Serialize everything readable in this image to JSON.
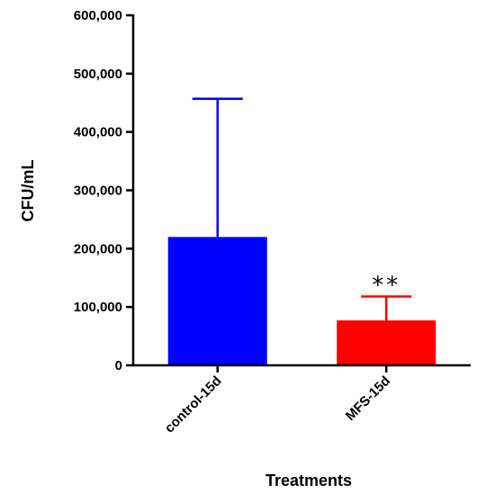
{
  "chart_data": {
    "type": "bar",
    "xlabel": "Treatments",
    "ylabel": "CFU/mL",
    "ylim": [
      0,
      600000
    ],
    "yticks": [
      0,
      100000,
      200000,
      300000,
      400000,
      500000,
      600000
    ],
    "ytick_labels": [
      "0",
      "100,000",
      "200,000",
      "300,000",
      "400,000",
      "500,000",
      "600,000"
    ],
    "categories": [
      "control-15d",
      "MFS-15d"
    ],
    "values": [
      220000,
      77000
    ],
    "error_upper": [
      457000,
      118000
    ],
    "colors": [
      "#0000ff",
      "#ff0000"
    ],
    "annotations": [
      {
        "category": "MFS-15d",
        "text": "**"
      }
    ],
    "grid": false,
    "legend": "none"
  }
}
